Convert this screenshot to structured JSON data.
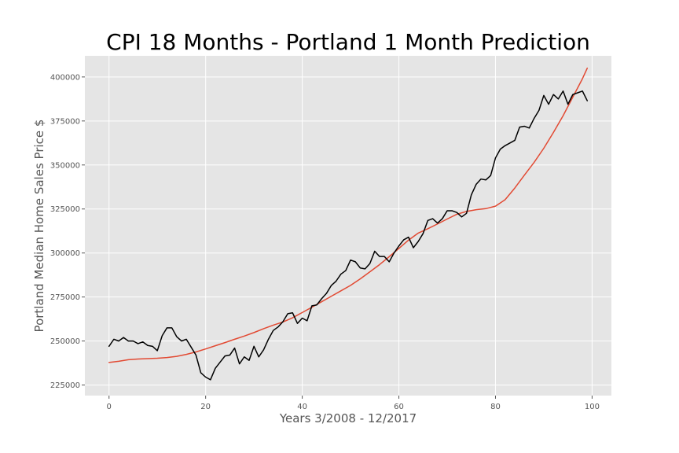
{
  "chart_data": {
    "type": "line",
    "title": "CPI 18 Months - Portland 1 Month Prediction",
    "xlabel": "Years 3/2008 - 12/2017",
    "ylabel": "Portland Median Home Sales Price $",
    "xlim": [
      -5,
      104
    ],
    "ylim": [
      219000,
      412000
    ],
    "xticks": [
      0,
      20,
      40,
      60,
      80,
      100
    ],
    "yticks": [
      225000,
      250000,
      275000,
      300000,
      325000,
      350000,
      375000,
      400000
    ],
    "grid": true,
    "legend": "none",
    "colors": {
      "background": "#e5e5e5",
      "grid": "#ffffff",
      "actual": "#000000",
      "predicted": "#e24a33"
    },
    "series": [
      {
        "key": "actual",
        "x": [
          0,
          1,
          2,
          3,
          4,
          5,
          6,
          7,
          8,
          9,
          10,
          11,
          12,
          13,
          14,
          15,
          16,
          17,
          18,
          19,
          20,
          21,
          22,
          23,
          24,
          25,
          26,
          27,
          28,
          29,
          30,
          31,
          32,
          33,
          34,
          35,
          36,
          37,
          38,
          39,
          40,
          41,
          42,
          43,
          44,
          45,
          46,
          47,
          48,
          49,
          50,
          51,
          52,
          53,
          54,
          55,
          56,
          57,
          58,
          59,
          60,
          61,
          62,
          63,
          64,
          65,
          66,
          67,
          68,
          69,
          70,
          71,
          72,
          73,
          74,
          75,
          76,
          77,
          78,
          79,
          80,
          81,
          82,
          83,
          84,
          85,
          86,
          87,
          88,
          89,
          90,
          91,
          92,
          93,
          94,
          95,
          96,
          97,
          98,
          99
        ],
        "y": [
          247000,
          251000,
          250000,
          252000,
          250000,
          250000,
          248500,
          249500,
          247500,
          247000,
          244500,
          253000,
          257500,
          257500,
          252500,
          250000,
          251000,
          246500,
          242000,
          232000,
          229500,
          228000,
          234500,
          238000,
          241500,
          242000,
          246000,
          237000,
          241000,
          239000,
          247000,
          241000,
          245000,
          251000,
          256000,
          258000,
          261000,
          265500,
          266000,
          260000,
          263000,
          261500,
          270000,
          270500,
          274000,
          277000,
          281500,
          284000,
          288000,
          290000,
          296000,
          295000,
          291500,
          291000,
          294000,
          301000,
          298000,
          298000,
          295000,
          300000,
          304000,
          307500,
          309000,
          303000,
          306500,
          311000,
          318500,
          319500,
          317000,
          319500,
          324000,
          324000,
          323000,
          320500,
          322500,
          333000,
          339000,
          342000,
          341500,
          344000,
          354000,
          359000,
          361000,
          362500,
          364000,
          371500,
          372000,
          371000,
          376500,
          381000,
          389500,
          384500,
          390000,
          387500,
          392000,
          384500,
          390000,
          391000,
          392000,
          386500
        ]
      },
      {
        "key": "predicted",
        "x": [
          0,
          2,
          4,
          6,
          8,
          10,
          12,
          14,
          16,
          18,
          20,
          22,
          24,
          26,
          28,
          30,
          32,
          34,
          36,
          38,
          40,
          42,
          44,
          46,
          48,
          50,
          52,
          54,
          56,
          58,
          60,
          62,
          64,
          66,
          68,
          70,
          72,
          74,
          76,
          78,
          80,
          82,
          84,
          86,
          88,
          90,
          92,
          94,
          96,
          98,
          99
        ],
        "y": [
          237800,
          238500,
          239400,
          239800,
          240000,
          240200,
          240600,
          241300,
          242400,
          243800,
          245500,
          247300,
          249100,
          251000,
          252800,
          254800,
          257000,
          259000,
          260800,
          263200,
          266200,
          269200,
          272300,
          275400,
          278500,
          281600,
          285300,
          289300,
          293400,
          297900,
          302600,
          307300,
          311300,
          313800,
          316500,
          319300,
          322000,
          323600,
          324600,
          325200,
          326600,
          330300,
          336900,
          344300,
          351500,
          359500,
          368500,
          378000,
          388500,
          399000,
          405000
        ]
      }
    ]
  }
}
